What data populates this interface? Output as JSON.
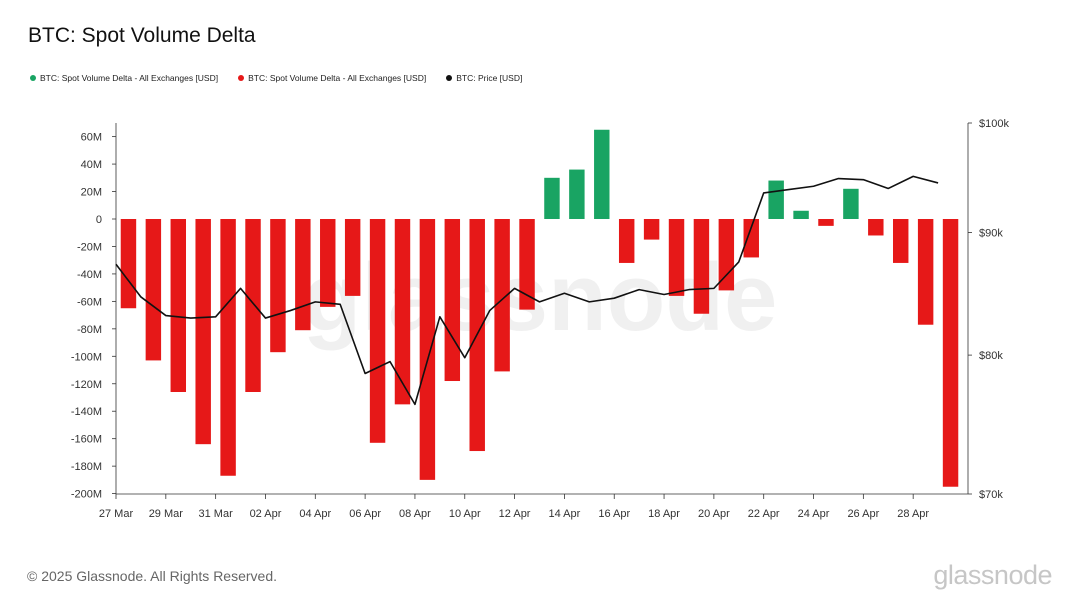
{
  "title": "BTC: Spot Volume Delta",
  "legend": [
    {
      "label": "BTC: Spot Volume Delta - All Exchanges [USD]",
      "color": "#19a463"
    },
    {
      "label": "BTC: Spot Volume Delta - All Exchanges [USD]",
      "color": "#e61818"
    },
    {
      "label": "BTC: Price [USD]",
      "color": "#111111"
    }
  ],
  "footer": "© 2025 Glassnode. All Rights Reserved.",
  "brand": "glassnode",
  "watermark": "glassnode",
  "colors": {
    "positive": "#19a463",
    "negative": "#e61818",
    "price": "#111111",
    "axis": "#333333"
  },
  "chart_data": {
    "type": "bar",
    "categories": [
      "27 Mar",
      "28 Mar",
      "29 Mar",
      "30 Mar",
      "31 Mar",
      "01 Apr",
      "02 Apr",
      "03 Apr",
      "04 Apr",
      "05 Apr",
      "06 Apr",
      "07 Apr",
      "08 Apr",
      "09 Apr",
      "10 Apr",
      "11 Apr",
      "12 Apr",
      "13 Apr",
      "14 Apr",
      "15 Apr",
      "16 Apr",
      "17 Apr",
      "18 Apr",
      "19 Apr",
      "20 Apr",
      "21 Apr",
      "22 Apr",
      "23 Apr",
      "24 Apr",
      "25 Apr",
      "26 Apr",
      "27 Apr",
      "28 Apr",
      "29 Apr"
    ],
    "x_tick_labels": [
      "27 Mar",
      "29 Mar",
      "31 Mar",
      "02 Apr",
      "04 Apr",
      "06 Apr",
      "08 Apr",
      "10 Apr",
      "12 Apr",
      "14 Apr",
      "16 Apr",
      "18 Apr",
      "20 Apr",
      "22 Apr",
      "24 Apr",
      "26 Apr",
      "28 Apr"
    ],
    "series": [
      {
        "axis": "left",
        "kind": "bar",
        "values": [
          -65,
          -103,
          -126,
          -164,
          -187,
          -126,
          -97,
          -81,
          -64,
          -56,
          -163,
          -135,
          -190,
          -118,
          -169,
          -111,
          -66,
          30,
          36,
          65,
          -32,
          -15,
          -56,
          -69,
          -52,
          -28,
          28,
          6,
          -5,
          22,
          -12,
          -32,
          -77,
          -195
        ]
      },
      {
        "axis": "right",
        "kind": "line",
        "values": [
          87300,
          84600,
          83100,
          82900,
          83000,
          85300,
          82900,
          83500,
          84200,
          84000,
          78600,
          79500,
          76300,
          83000,
          79800,
          83500,
          85300,
          84200,
          84900,
          84200,
          84500,
          85200,
          84800,
          85200,
          85300,
          87500,
          93500,
          93800,
          94100,
          94800,
          94700,
          93900,
          95000,
          94400
        ]
      }
    ],
    "ylim": [
      -200,
      70
    ],
    "yticks_left": [
      60,
      40,
      20,
      0,
      -20,
      -40,
      -60,
      -80,
      -100,
      -120,
      -140,
      -160,
      -180,
      -200
    ],
    "ytick_labels_left": [
      "60M",
      "40M",
      "20M",
      "0",
      "-20M",
      "-40M",
      "-60M",
      "-80M",
      "-100M",
      "-120M",
      "-140M",
      "-160M",
      "-180M",
      "-200M"
    ],
    "y2_scale": "log",
    "y2lim": [
      70000,
      100000
    ],
    "yticks_right": [
      100000,
      90000,
      80000,
      70000
    ],
    "ytick_labels_right": [
      "$100k",
      "$90k",
      "$80k",
      "$70k"
    ],
    "grid": false
  }
}
